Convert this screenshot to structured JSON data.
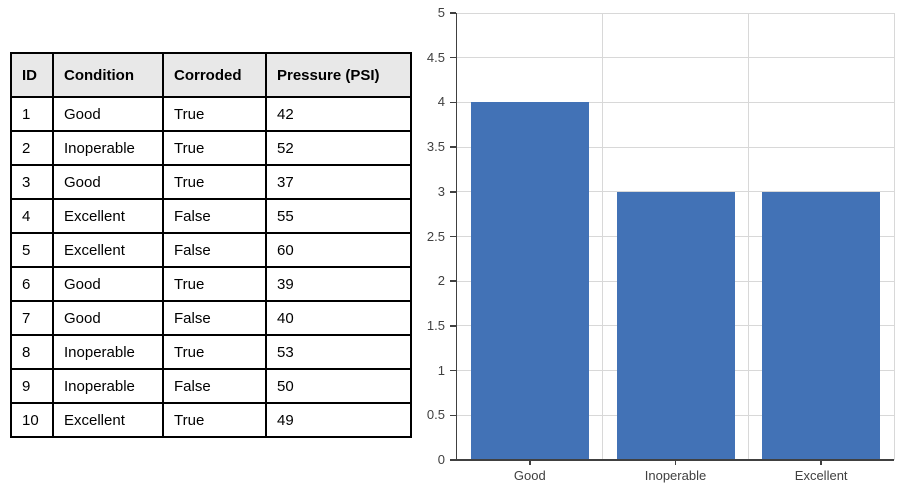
{
  "table": {
    "headers": [
      "ID",
      "Condition",
      "Corroded",
      "Pressure (PSI)"
    ],
    "rows": [
      [
        "1",
        "Good",
        "True",
        "42"
      ],
      [
        "2",
        "Inoperable",
        "True",
        "52"
      ],
      [
        "3",
        "Good",
        "True",
        "37"
      ],
      [
        "4",
        "Excellent",
        "False",
        "55"
      ],
      [
        "5",
        "Excellent",
        "False",
        "60"
      ],
      [
        "6",
        "Good",
        "True",
        "39"
      ],
      [
        "7",
        "Good",
        "False",
        "40"
      ],
      [
        "8",
        "Inoperable",
        "True",
        "53"
      ],
      [
        "9",
        "Inoperable",
        "False",
        "50"
      ],
      [
        "10",
        "Excellent",
        "True",
        "49"
      ]
    ],
    "header_bg": "#E8E8E8",
    "border_color": "#000000"
  },
  "chart_data": {
    "type": "bar",
    "categories": [
      "Good",
      "Inoperable",
      "Excellent"
    ],
    "values": [
      4,
      3,
      3
    ],
    "ylim": [
      0,
      5
    ],
    "ytick_step": 0.5,
    "yticks": [
      0,
      0.5,
      1,
      1.5,
      2,
      2.5,
      3,
      3.5,
      4,
      4.5,
      5
    ],
    "grid": true,
    "legend": "none",
    "bar_color": "#4272B6",
    "gridline_color": "#D8D8D8",
    "axis_color": "#404040",
    "label_color": "#404040"
  }
}
